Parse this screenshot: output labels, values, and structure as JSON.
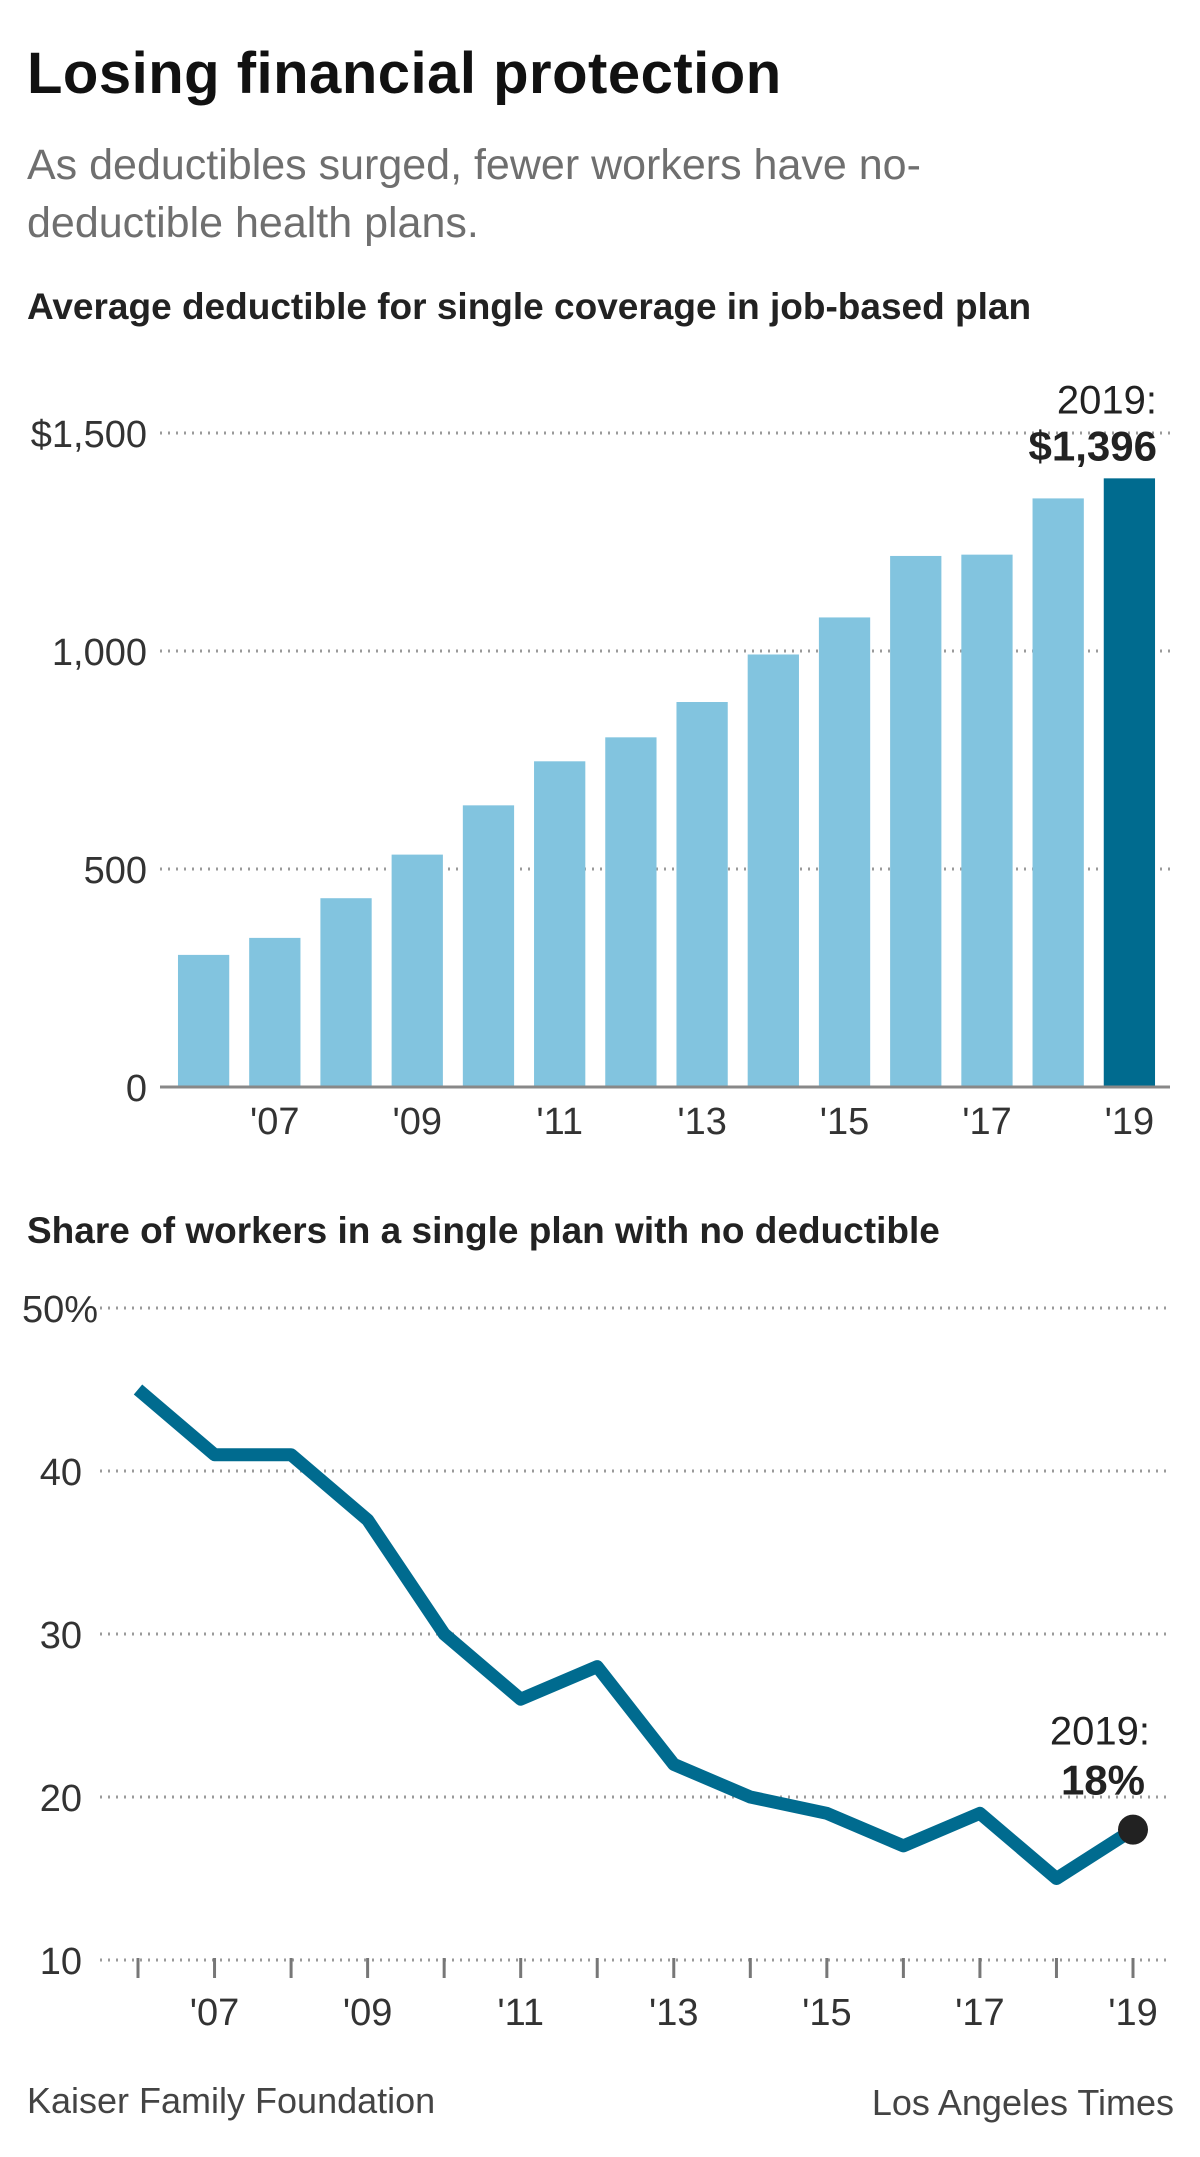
{
  "header": {
    "title": "Losing financial protection",
    "subtitle": "As deductibles surged, fewer workers have no-deductible health plans."
  },
  "footer": {
    "source": "Kaiser Family Foundation",
    "credit": "Los Angeles Times"
  },
  "colors": {
    "bar": "#82c4df",
    "highlight": "#006b8f",
    "line": "#006b8f",
    "grid": "#9a9a9a",
    "dot": "#222222"
  },
  "chart_data": [
    {
      "type": "bar",
      "title": "Average deductible for single coverage in job-based plan",
      "categories": [
        "2006",
        "2007",
        "2008",
        "2009",
        "2010",
        "2011",
        "2012",
        "2013",
        "2014",
        "2015",
        "2016",
        "2017",
        "2018",
        "2019"
      ],
      "values": [
        303,
        342,
        433,
        533,
        646,
        747,
        802,
        883,
        992,
        1077,
        1218,
        1221,
        1350,
        1396
      ],
      "tick_labels": [
        "'07",
        "'09",
        "'11",
        "'13",
        "'15",
        "'17",
        "'19"
      ],
      "tick_categories": [
        "2007",
        "2009",
        "2011",
        "2013",
        "2015",
        "2017",
        "2019"
      ],
      "yticks": [
        {
          "value": 0,
          "label": "0"
        },
        {
          "value": 500,
          "label": "500"
        },
        {
          "value": 1000,
          "label": "1,000"
        },
        {
          "value": 1500,
          "label": "$1,500"
        }
      ],
      "ylim": [
        0,
        1500
      ],
      "grid": true,
      "highlight": "2019",
      "annotation": {
        "label": "2019:",
        "value": "$1,396"
      }
    },
    {
      "type": "line",
      "title": "Share of workers in a single plan with no deductible",
      "x": [
        2006,
        2007,
        2008,
        2009,
        2010,
        2011,
        2012,
        2013,
        2014,
        2015,
        2016,
        2017,
        2018,
        2019
      ],
      "y": [
        45,
        41,
        41,
        37,
        30,
        26,
        28,
        22,
        20,
        19,
        17,
        19,
        15,
        18
      ],
      "tick_labels": [
        "'07",
        "'09",
        "'11",
        "'13",
        "'15",
        "'17",
        "'19"
      ],
      "tick_x": [
        2007,
        2009,
        2011,
        2013,
        2015,
        2017,
        2019
      ],
      "yticks": [
        {
          "value": 10,
          "label": "10"
        },
        {
          "value": 20,
          "label": "20"
        },
        {
          "value": 30,
          "label": "30"
        },
        {
          "value": 40,
          "label": "40"
        },
        {
          "value": 50,
          "label": "50%"
        }
      ],
      "ylim": [
        10,
        50
      ],
      "grid": true,
      "annotation": {
        "label": "2019:",
        "value": "18%"
      }
    }
  ]
}
